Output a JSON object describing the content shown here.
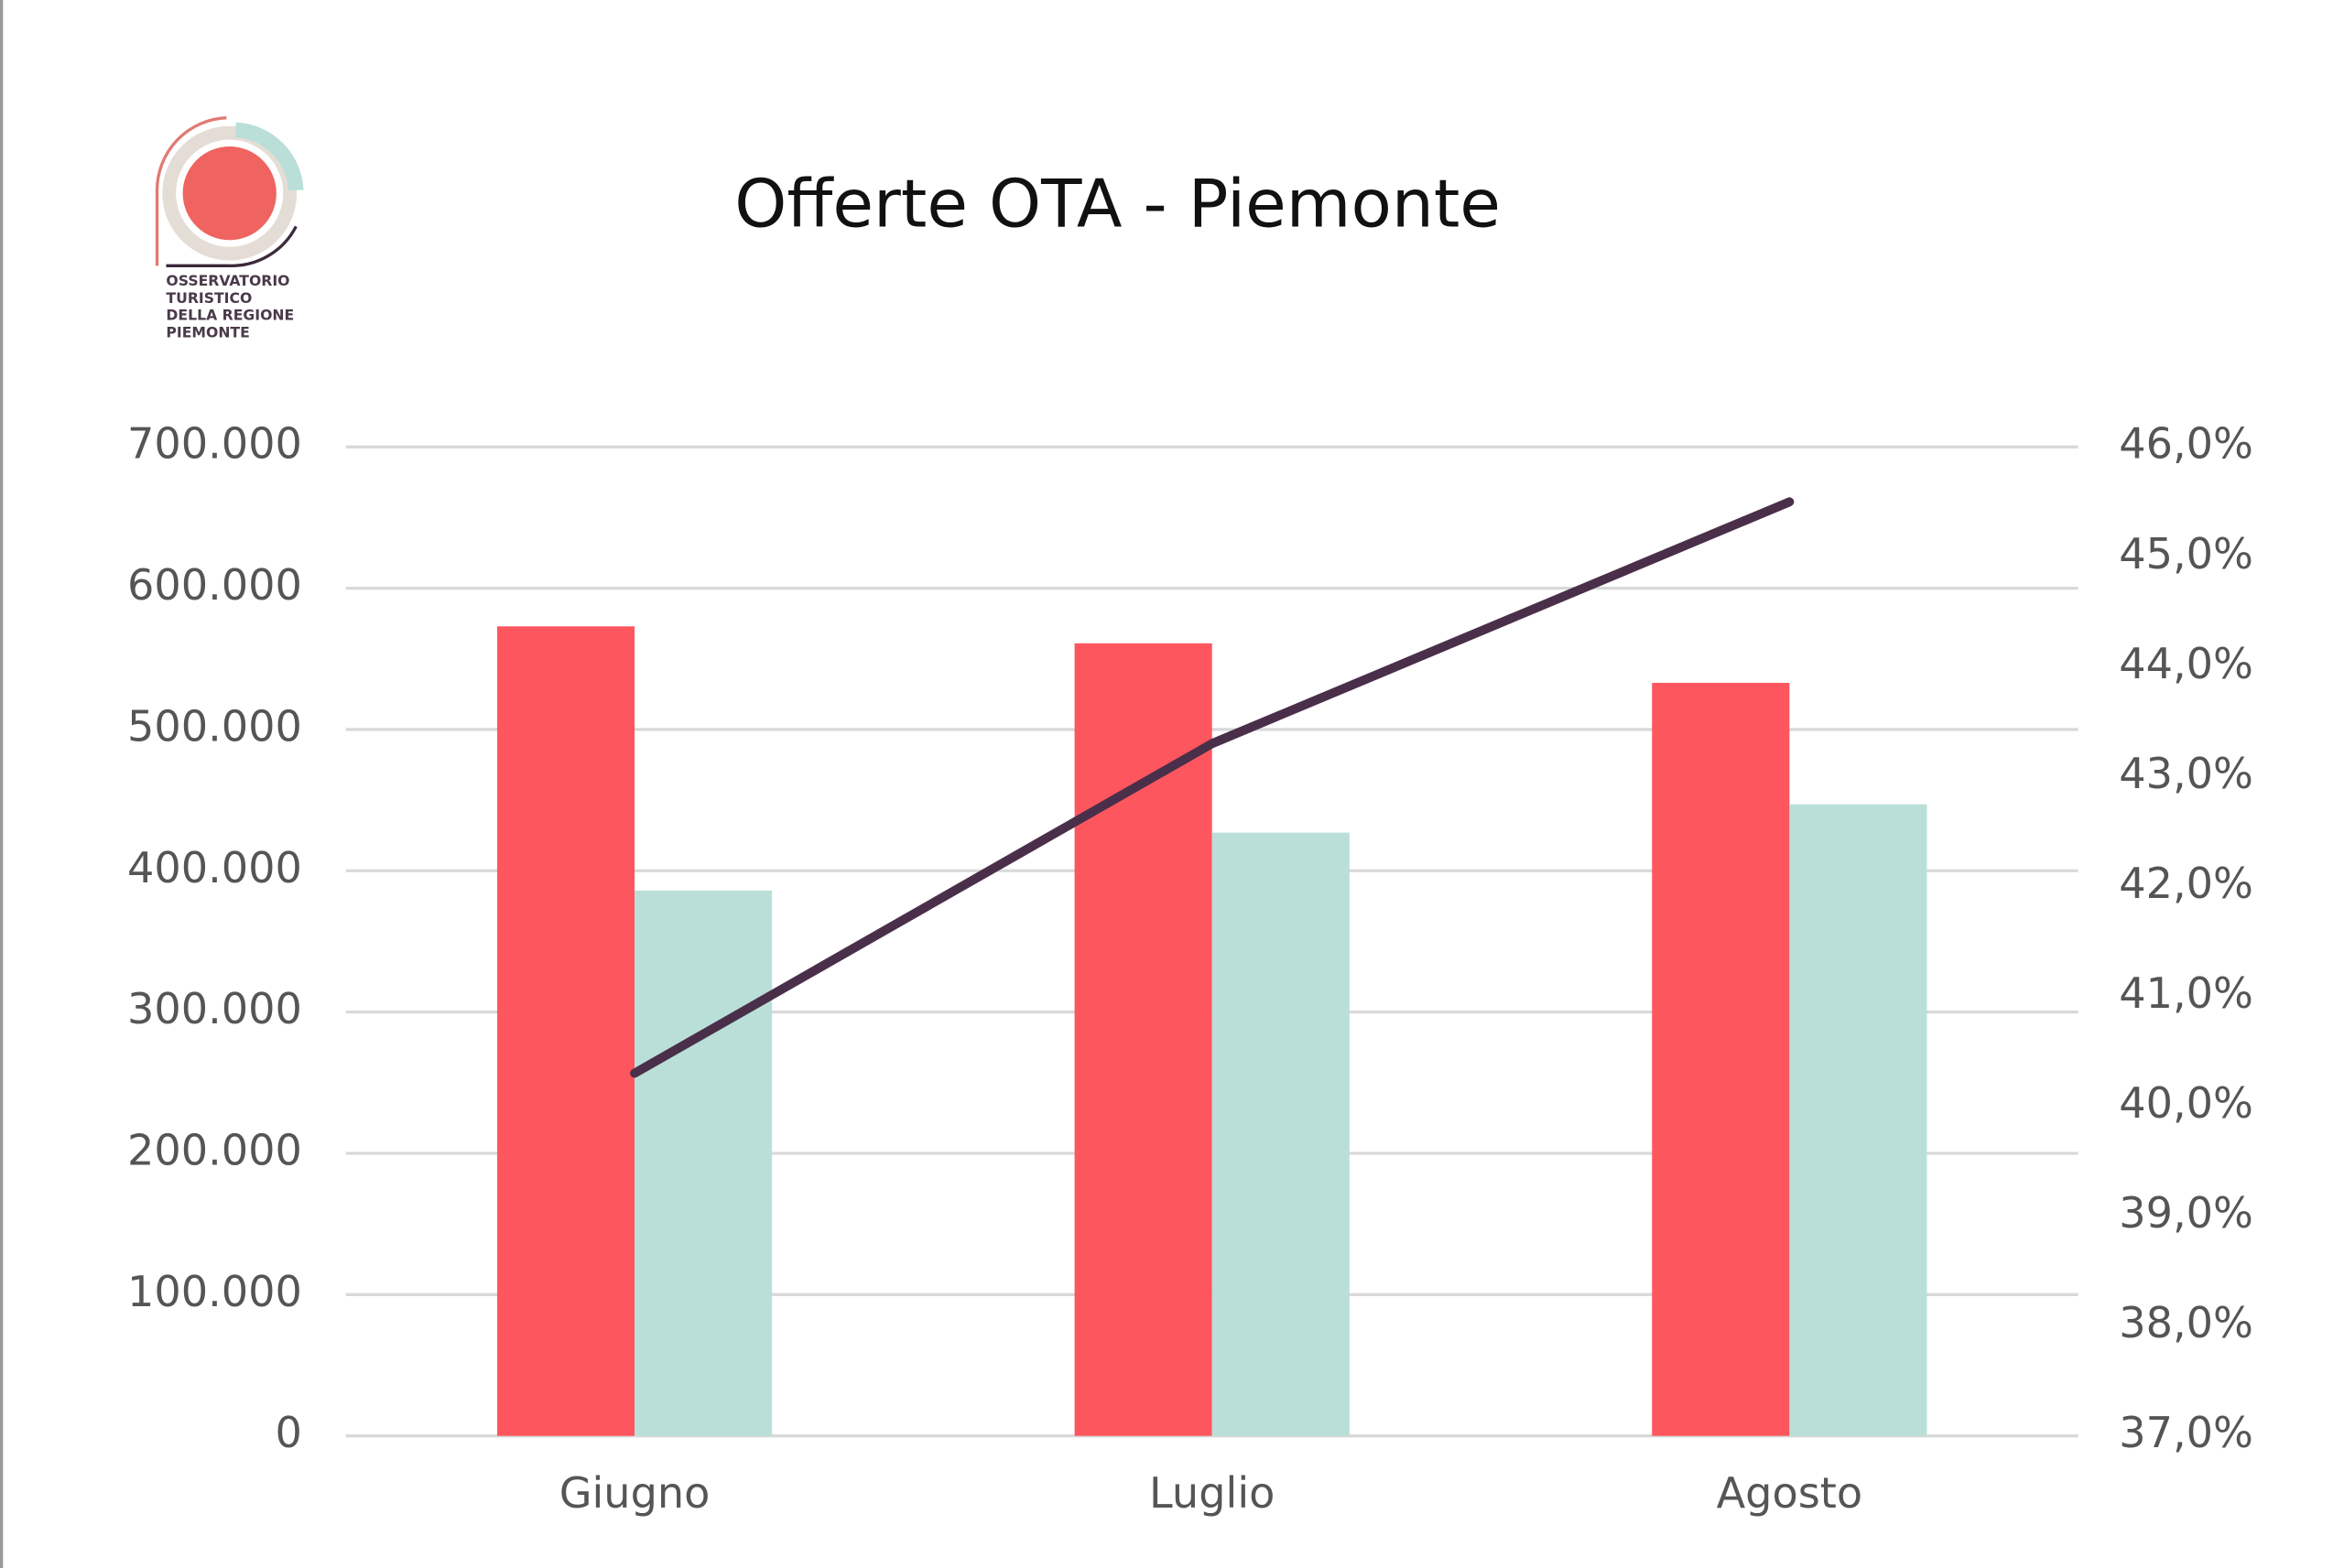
{
  "logo": {
    "lines": [
      "OSSERVATORIO",
      "TURISTICO",
      "DELLA REGIONE",
      "PIEMONTE"
    ]
  },
  "chart_data": {
    "type": "bar",
    "title": "Offerte OTA - Piemonte",
    "categories": [
      "Giugno",
      "Luglio",
      "Agosto"
    ],
    "series": [
      {
        "color": "#fe565e",
        "values": [
          573000,
          561000,
          533000
        ]
      },
      {
        "color": "#b9dfd8",
        "values": [
          386000,
          427000,
          447000
        ]
      },
      {
        "type": "line",
        "axis": "y2",
        "color": "#4a2f4a",
        "values": [
          40.3,
          43.3,
          45.5
        ]
      }
    ],
    "ylim": [
      0,
      700000
    ],
    "yticks": [
      0,
      {
        "value": 100000,
        "label": "100.000"
      },
      {
        "value": 200000,
        "label": "200.000"
      },
      {
        "value": 300000,
        "label": "300.000"
      },
      {
        "value": 400000,
        "label": "400.000"
      },
      {
        "value": 500000,
        "label": "500.000"
      },
      {
        "value": 600000,
        "label": "600.000"
      },
      {
        "value": 700000,
        "label": "700.000"
      }
    ],
    "y2lim": [
      37,
      46
    ],
    "y2ticks": [
      {
        "value": 37,
        "label": "37,0%"
      },
      {
        "value": 38,
        "label": "38,0%"
      },
      {
        "value": 39,
        "label": "39,0%"
      },
      {
        "value": 40,
        "label": "40,0%"
      },
      {
        "value": 41,
        "label": "41,0%"
      },
      {
        "value": 42,
        "label": "42,0%"
      },
      {
        "value": 43,
        "label": "43,0%"
      },
      {
        "value": 44,
        "label": "44,0%"
      },
      {
        "value": 45,
        "label": "45,0%"
      },
      {
        "value": 46,
        "label": "46,0%"
      }
    ],
    "grid": true
  }
}
